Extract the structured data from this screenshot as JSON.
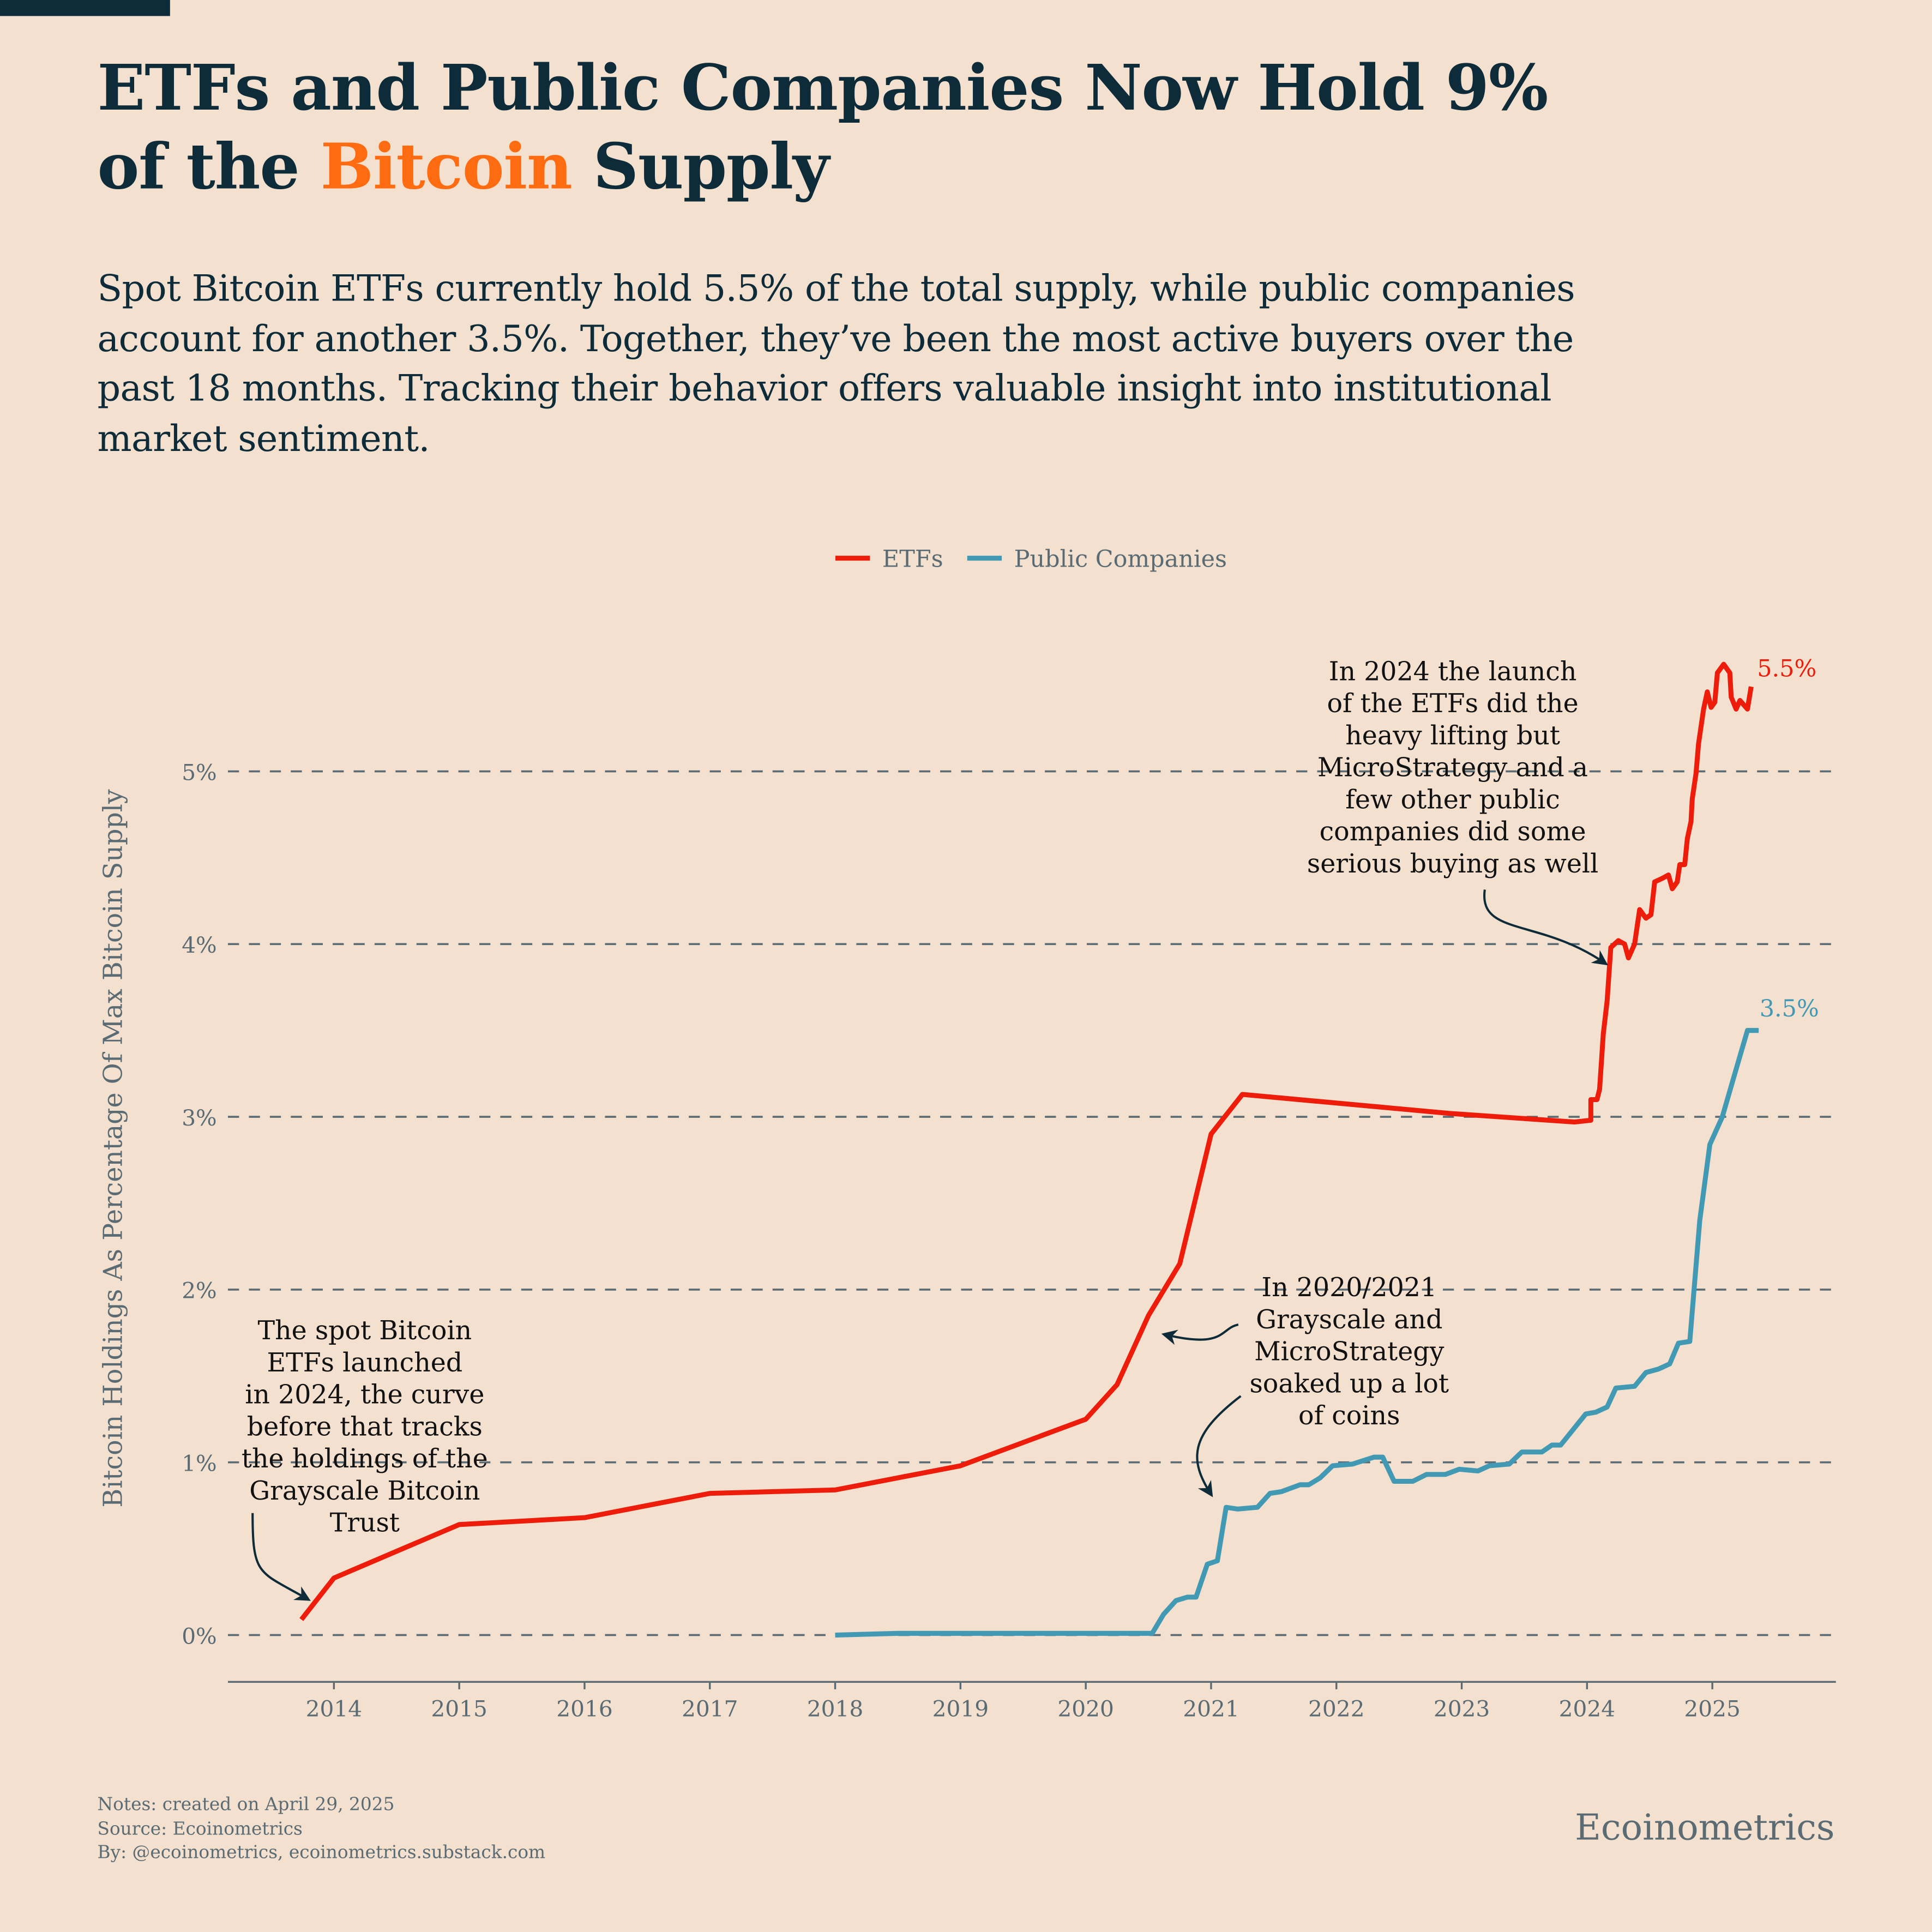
{
  "header": {
    "title_pre": "ETFs and Public Companies Now Hold 9%",
    "title_line2_pre": "of the ",
    "title_highlight": "Bitcoin",
    "title_line2_post": " Supply",
    "subtitle": "Spot Bitcoin ETFs currently hold 5.5% of the total supply, while public companies account for another 3.5%. Together, they’ve been the most active buyers over the past 18 months. Tracking their behavior offers valuable insight into institutional market sentiment."
  },
  "colors": {
    "background": "#f3e0cf",
    "title": "#0d2b38",
    "highlight": "#ff6b10",
    "etf": "#ee1c0a",
    "public": "#4299b4",
    "axis": "#5b6b73"
  },
  "chart_data": {
    "type": "line",
    "title": "",
    "xlabel": "",
    "ylabel": "Bitcoin Holdings As Percentage Of Max Bitcoin Supply",
    "xlim": [
      2013.15,
      2025.95
    ],
    "ylim": [
      -0.27,
      5.75
    ],
    "x_ticks": [
      "2014",
      "2015",
      "2016",
      "2017",
      "2018",
      "2019",
      "2020",
      "2021",
      "2022",
      "2023",
      "2024",
      "2025"
    ],
    "y_ticks": [
      "0%",
      "1%",
      "2%",
      "3%",
      "4%",
      "5%"
    ],
    "grid": "horizontal dashed",
    "legend": "top-center",
    "series": [
      {
        "name": "ETFs",
        "color": "#ee1c0a",
        "end_label": "5.5%",
        "x": [
          2013.74,
          2014.0,
          2015.0,
          2016.0,
          2017.0,
          2018.0,
          2019.0,
          2020.0,
          2020.25,
          2020.5,
          2020.75,
          2021.0,
          2021.25,
          2022.9,
          2023.9,
          2024.03,
          2024.03,
          2024.08,
          2024.1,
          2024.13,
          2024.16,
          2024.19,
          2024.25,
          2024.3,
          2024.33,
          2024.38,
          2024.42,
          2024.47,
          2024.51,
          2024.54,
          2024.6,
          2024.65,
          2024.68,
          2024.72,
          2024.74,
          2024.78,
          2024.8,
          2024.83,
          2024.84,
          2024.87,
          2024.89,
          2024.93,
          2024.96,
          2024.99,
          2025.02,
          2025.04,
          2025.09,
          2025.14,
          2025.15,
          2025.19,
          2025.22,
          2025.28,
          2025.31
        ],
        "y": [
          0.09,
          0.33,
          0.64,
          0.68,
          0.82,
          0.84,
          0.98,
          1.25,
          1.45,
          1.85,
          2.15,
          2.9,
          3.13,
          3.02,
          2.97,
          2.98,
          3.1,
          3.1,
          3.16,
          3.48,
          3.67,
          3.98,
          4.02,
          4.0,
          3.92,
          4.0,
          4.2,
          4.15,
          4.17,
          4.36,
          4.38,
          4.4,
          4.32,
          4.36,
          4.46,
          4.46,
          4.61,
          4.71,
          4.84,
          4.99,
          5.16,
          5.36,
          5.46,
          5.37,
          5.4,
          5.57,
          5.62,
          5.57,
          5.43,
          5.36,
          5.41,
          5.36,
          5.49
        ]
      },
      {
        "name": "Public Companies",
        "color": "#4299b4",
        "end_label": "3.5%",
        "x": [
          2018.0,
          2018.5,
          2019.0,
          2019.5,
          2020.22,
          2020.53,
          2020.62,
          2020.72,
          2020.81,
          2020.88,
          2020.97,
          2021.05,
          2021.12,
          2021.21,
          2021.37,
          2021.47,
          2021.56,
          2021.71,
          2021.78,
          2021.87,
          2021.97,
          2022.13,
          2022.3,
          2022.37,
          2022.46,
          2022.61,
          2022.72,
          2022.87,
          2022.98,
          2023.13,
          2023.22,
          2023.38,
          2023.48,
          2023.64,
          2023.72,
          2023.79,
          2023.99,
          2024.07,
          2024.16,
          2024.23,
          2024.38,
          2024.47,
          2024.57,
          2024.66,
          2024.73,
          2024.82,
          2024.9,
          2024.98,
          2025.08,
          2025.2,
          2025.28,
          2025.37
        ],
        "y": [
          0.0,
          0.01,
          0.01,
          0.01,
          0.01,
          0.01,
          0.12,
          0.2,
          0.22,
          0.22,
          0.41,
          0.43,
          0.74,
          0.73,
          0.74,
          0.82,
          0.83,
          0.87,
          0.87,
          0.91,
          0.98,
          0.99,
          1.03,
          1.03,
          0.89,
          0.89,
          0.93,
          0.93,
          0.96,
          0.95,
          0.98,
          0.99,
          1.06,
          1.06,
          1.1,
          1.1,
          1.28,
          1.29,
          1.32,
          1.43,
          1.44,
          1.52,
          1.54,
          1.57,
          1.69,
          1.7,
          2.4,
          2.84,
          3.0,
          3.3,
          3.5,
          3.5
        ]
      }
    ],
    "annotations": [
      {
        "lines": [
          "In 2024 the launch",
          "of the ETFs did the",
          "heavy lifting but",
          "MicroStrategy and a",
          "few other public",
          "companies did some",
          "serious buying as well"
        ]
      },
      {
        "lines": [
          "In 2020/2021",
          "Grayscale and",
          "MicroStrategy",
          "soaked up a lot",
          "of coins"
        ]
      },
      {
        "lines": [
          "The spot Bitcoin",
          "ETFs launched",
          "in 2024, the curve",
          "before that tracks",
          "the holdings of the",
          "Grayscale Bitcoin",
          "Trust"
        ]
      }
    ]
  },
  "footer": {
    "notes": "Notes: created on April 29, 2025",
    "source": "Source: Ecoinometrics",
    "by": "By: @ecoinometrics, ecoinometrics.substack.com",
    "brand": "Ecoinometrics"
  }
}
